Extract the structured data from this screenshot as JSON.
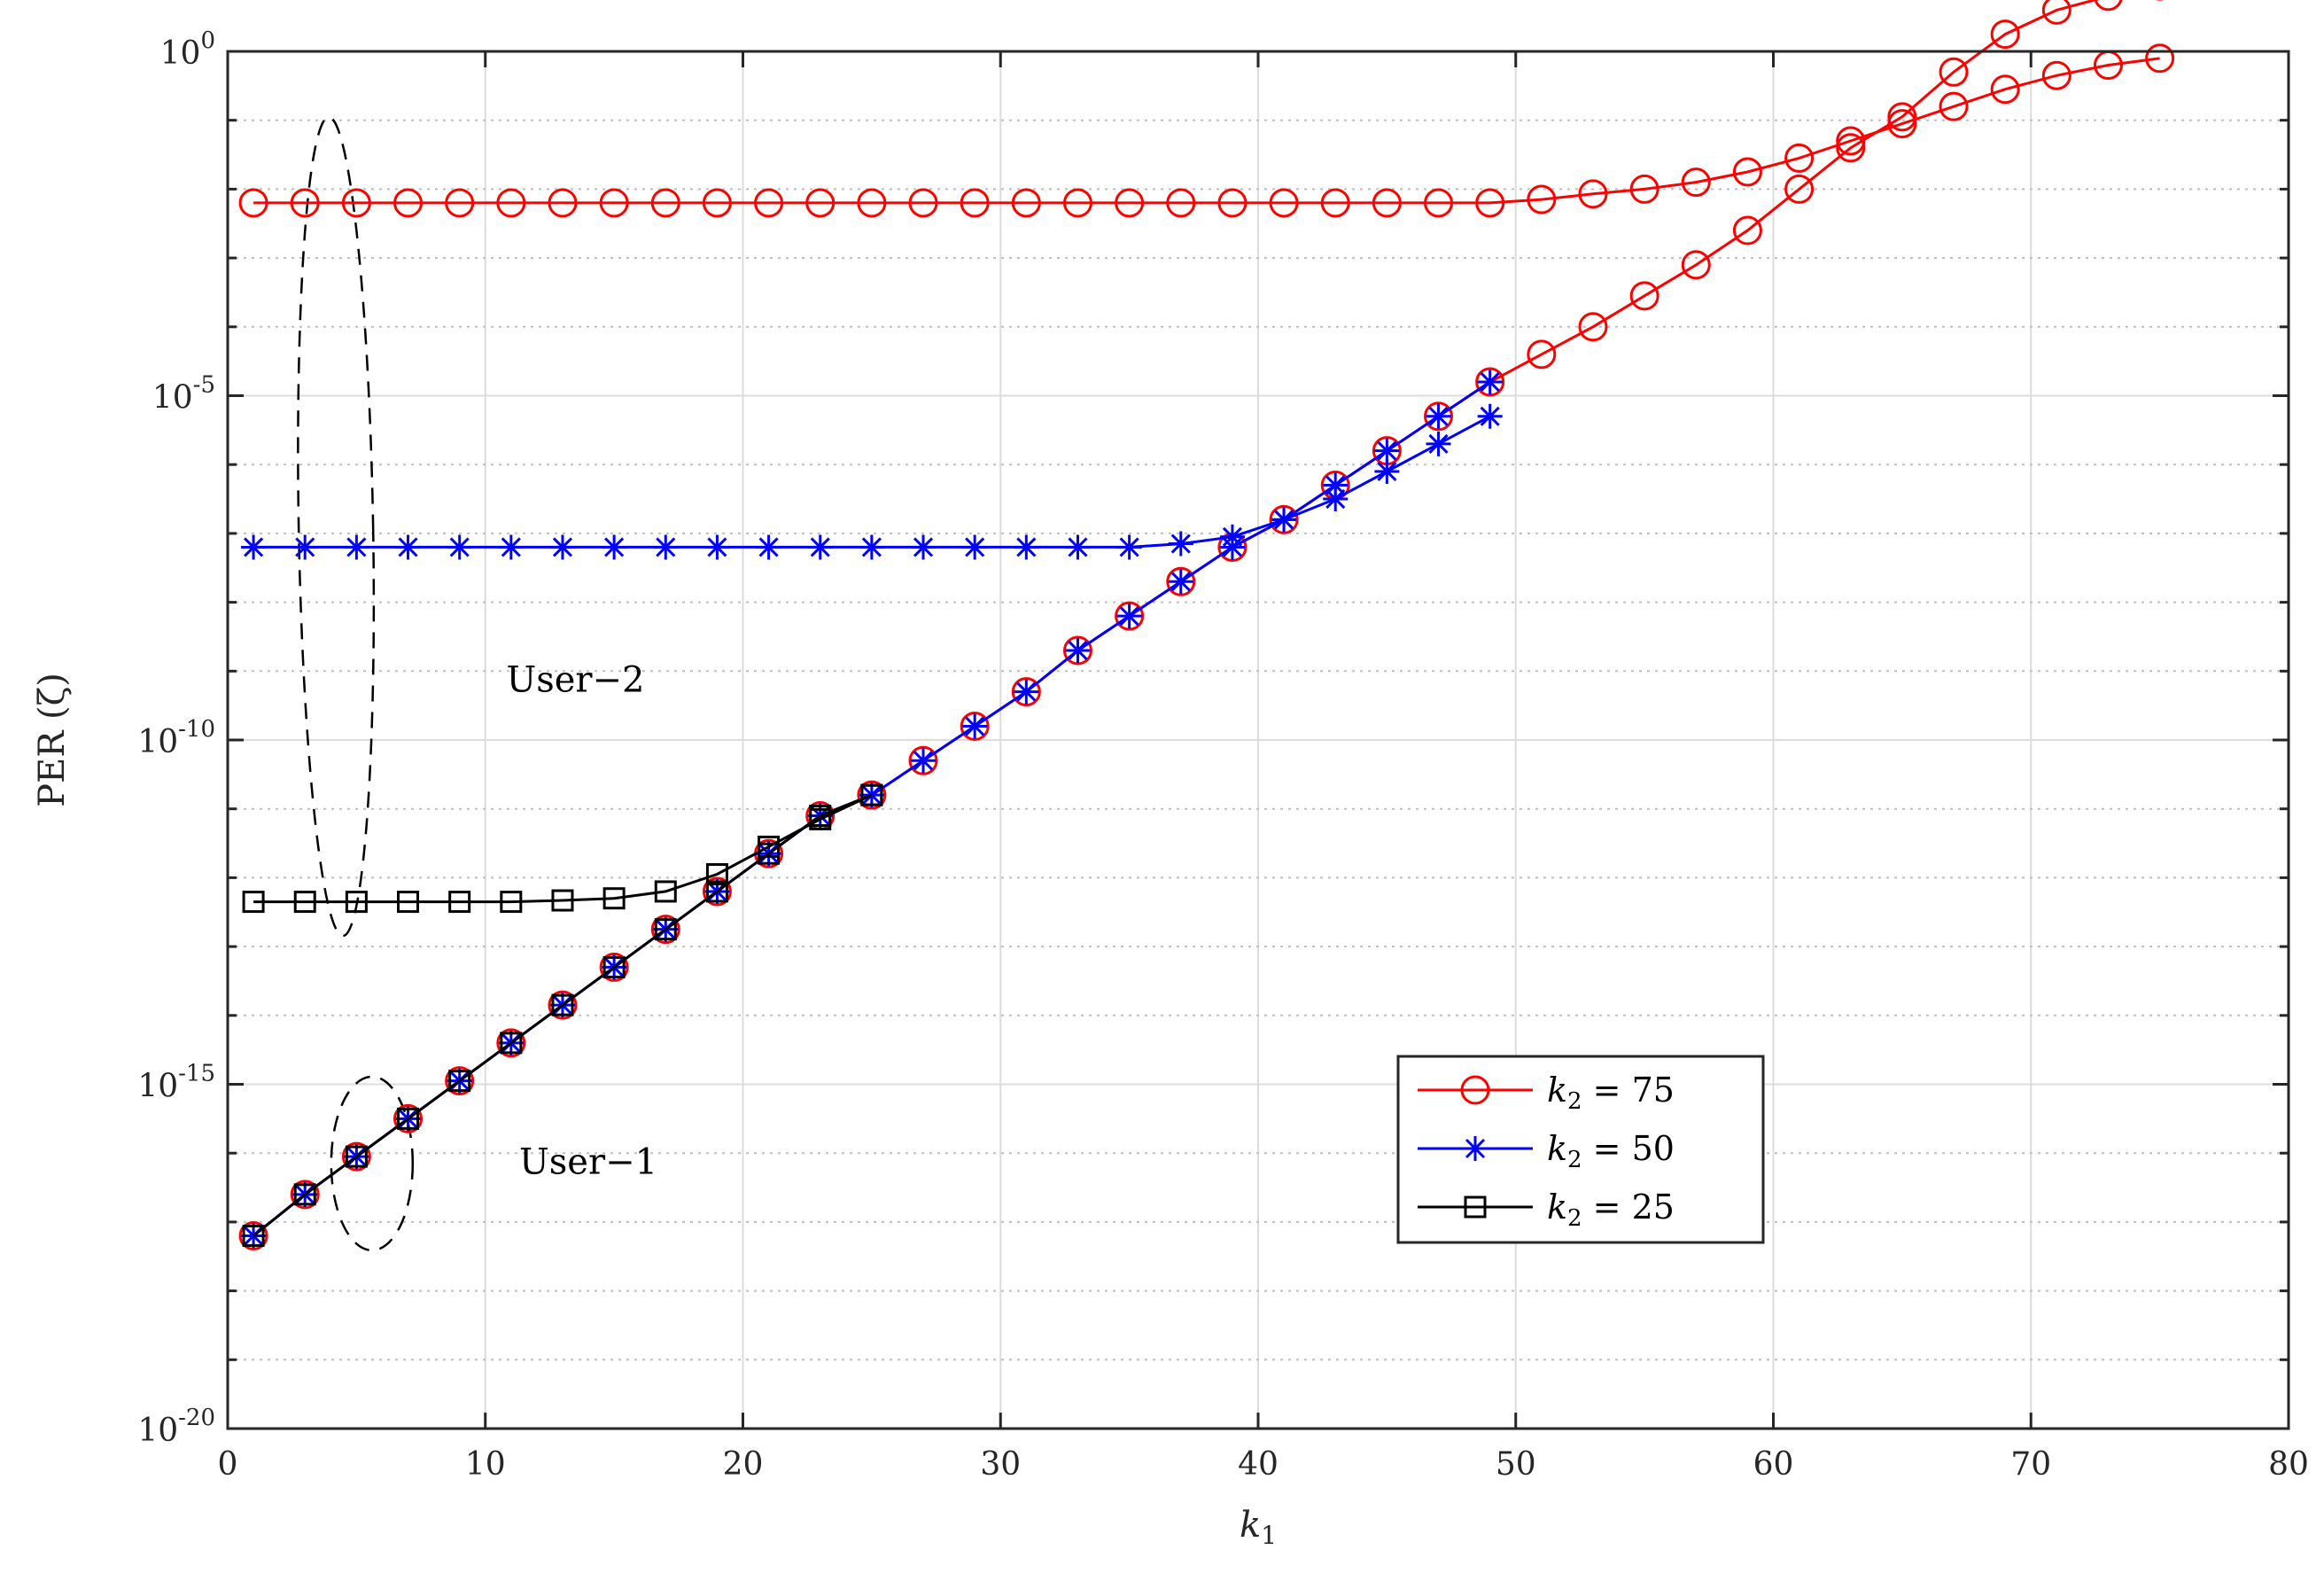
{
  "chart_data": {
    "type": "line",
    "title": "",
    "xlabel": "k",
    "xlabel_sub": "1",
    "ylabel": "PER (ζ)",
    "xlim": [
      0,
      80
    ],
    "x_ticks": [
      0,
      10,
      20,
      30,
      40,
      50,
      60,
      70,
      80
    ],
    "y_scale": "log",
    "ylim_exp": [
      -20,
      0
    ],
    "y_ticks": [
      {
        "base": "10",
        "exp": "0",
        "value_exp": 0
      },
      {
        "base": "10",
        "exp": "-5",
        "value_exp": -5
      },
      {
        "base": "10",
        "exp": "-10",
        "value_exp": -10
      },
      {
        "base": "10",
        "exp": "-15",
        "value_exp": -15
      },
      {
        "base": "10",
        "exp": "-20",
        "value_exp": -20
      }
    ],
    "grid": true,
    "legend_position": "bottom-right",
    "annotations": [
      {
        "text": "User−2",
        "x": 13.5,
        "y_exp": -9.3
      },
      {
        "text": "User−1",
        "x": 14,
        "y_exp": -16.3
      }
    ],
    "series": [
      {
        "name": "k2 = 75",
        "legend_label": "k",
        "legend_sub": "2",
        "legend_value": " = 75",
        "color": "#ff0000",
        "marker": "circle",
        "user1": {
          "x": [
            1,
            3,
            5,
            7,
            9,
            11,
            13,
            15,
            17,
            19,
            21,
            23,
            25,
            27,
            29,
            31,
            33,
            35,
            37,
            39,
            41,
            43,
            45,
            47,
            49,
            51,
            53,
            55,
            57,
            59,
            61,
            63,
            65,
            67,
            69,
            71,
            73,
            75
          ],
          "y_exp": [
            -17.2,
            -16.6,
            -16.05,
            -15.5,
            -14.95,
            -14.4,
            -13.85,
            -13.3,
            -12.75,
            -12.2,
            -11.65,
            -11.1,
            -10.8,
            -10.3,
            -9.8,
            -9.3,
            -8.7,
            -8.2,
            -7.7,
            -7.2,
            -6.8,
            -6.3,
            -5.8,
            -5.3,
            -4.8,
            -4.4,
            -4.0,
            -3.55,
            -3.1,
            -2.6,
            -2.0,
            -1.4,
            -0.95,
            -0.3,
            0.25,
            0.6,
            0.8,
            0.95
          ],
          "y_exp_display": "log10 of PER"
        },
        "user2": {
          "x": [
            1,
            3,
            5,
            7,
            9,
            11,
            13,
            15,
            17,
            19,
            21,
            23,
            25,
            27,
            29,
            31,
            33,
            35,
            37,
            39,
            41,
            43,
            45,
            47,
            49,
            51,
            53,
            55,
            57,
            59,
            61,
            63,
            65,
            67,
            69,
            71,
            73,
            75
          ],
          "y_exp": [
            -2.2,
            -2.2,
            -2.2,
            -2.2,
            -2.2,
            -2.2,
            -2.2,
            -2.2,
            -2.2,
            -2.2,
            -2.2,
            -2.2,
            -2.2,
            -2.2,
            -2.2,
            -2.2,
            -2.2,
            -2.2,
            -2.2,
            -2.2,
            -2.2,
            -2.2,
            -2.2,
            -2.2,
            -2.2,
            -2.15,
            -2.07,
            -2.0,
            -1.9,
            -1.75,
            -1.55,
            -1.3,
            -1.05,
            -0.8,
            -0.55,
            -0.35,
            -0.2,
            -0.1
          ]
        }
      },
      {
        "name": "k2 = 50",
        "legend_label": "k",
        "legend_sub": "2",
        "legend_value": " = 50",
        "color": "#0000ff",
        "marker": "asterisk",
        "user1": {
          "x": [
            1,
            3,
            5,
            7,
            9,
            11,
            13,
            15,
            17,
            19,
            21,
            23,
            25,
            27,
            29,
            31,
            33,
            35,
            37,
            39,
            41,
            43,
            45,
            47,
            49
          ],
          "y_exp": [
            -17.2,
            -16.6,
            -16.05,
            -15.5,
            -14.95,
            -14.4,
            -13.85,
            -13.3,
            -12.75,
            -12.2,
            -11.65,
            -11.1,
            -10.8,
            -10.3,
            -9.8,
            -9.3,
            -8.7,
            -8.2,
            -7.7,
            -7.2,
            -6.8,
            -6.3,
            -5.8,
            -5.3,
            -4.8
          ]
        },
        "user2": {
          "x": [
            1,
            3,
            5,
            7,
            9,
            11,
            13,
            15,
            17,
            19,
            21,
            23,
            25,
            27,
            29,
            31,
            33,
            35,
            37,
            39,
            41,
            43,
            45,
            47,
            49
          ],
          "y_exp": [
            -7.2,
            -7.2,
            -7.2,
            -7.2,
            -7.2,
            -7.2,
            -7.2,
            -7.2,
            -7.2,
            -7.2,
            -7.2,
            -7.2,
            -7.2,
            -7.2,
            -7.2,
            -7.2,
            -7.2,
            -7.2,
            -7.15,
            -7.05,
            -6.8,
            -6.5,
            -6.1,
            -5.7,
            -5.3
          ]
        }
      },
      {
        "name": "k2 = 25",
        "legend_label": "k",
        "legend_sub": "2",
        "legend_value": " = 25",
        "color": "#000000",
        "marker": "square",
        "user1": {
          "x": [
            1,
            3,
            5,
            7,
            9,
            11,
            13,
            15,
            17,
            19,
            21,
            23,
            25
          ],
          "y_exp": [
            -17.2,
            -16.6,
            -16.05,
            -15.5,
            -14.95,
            -14.4,
            -13.85,
            -13.3,
            -12.75,
            -12.2,
            -11.65,
            -11.1,
            -10.8
          ]
        },
        "user2": {
          "x": [
            1,
            3,
            5,
            7,
            9,
            11,
            13,
            15,
            17,
            19,
            21,
            23,
            25
          ],
          "y_exp": [
            -12.35,
            -12.35,
            -12.35,
            -12.35,
            -12.35,
            -12.35,
            -12.33,
            -12.3,
            -12.2,
            -11.95,
            -11.55,
            -11.15,
            -10.8
          ]
        }
      }
    ]
  }
}
